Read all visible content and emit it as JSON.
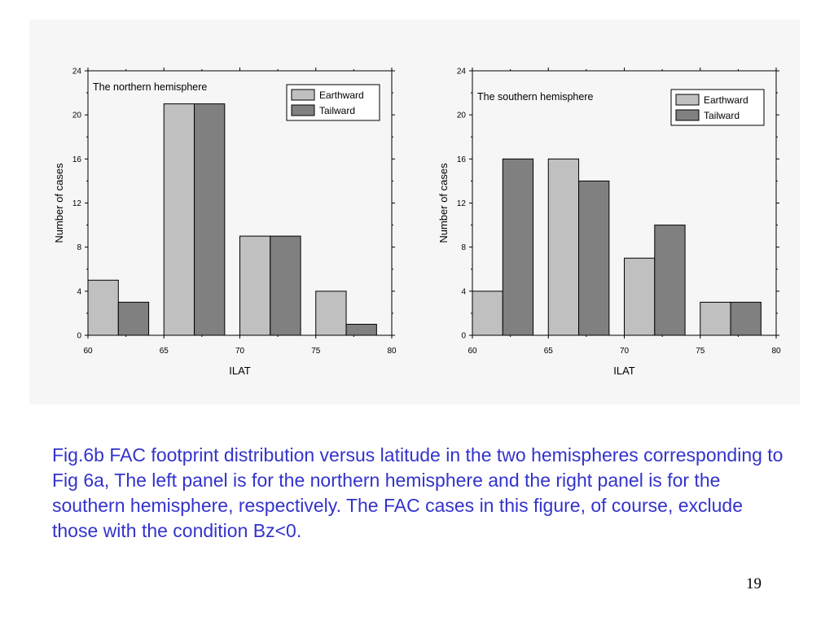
{
  "caption": "Fig.6b  FAC footprint distribution versus latitude in the two hemispheres corresponding to Fig 6a, The left panel is for the northern hemisphere and the right panel is for the southern hemisphere, respectively. The FAC cases in this figure, of course, exclude those with the condition Bz<0.",
  "page_number": "19",
  "colors": {
    "earthward": "#c0c0c0",
    "tailward": "#808080",
    "caption_text": "#3333cc"
  },
  "chart_data": [
    {
      "type": "bar",
      "title": "The northern hemisphere",
      "xlabel": "ILAT",
      "ylabel": "Number of cases",
      "xlim": [
        60,
        80
      ],
      "ylim": [
        0,
        24
      ],
      "xticks": [
        "60",
        "65",
        "70",
        "75",
        "80"
      ],
      "yticks": [
        "0",
        "4",
        "8",
        "12",
        "16",
        "20",
        "24"
      ],
      "bin_width": 2,
      "legend_position": "top-right",
      "grid": false,
      "series": [
        {
          "name": "Earthward",
          "color": "#c0c0c0",
          "x": [
            61,
            66,
            71,
            76
          ],
          "values": [
            5,
            21,
            9,
            4
          ]
        },
        {
          "name": "Tailward",
          "color": "#808080",
          "x": [
            63,
            68,
            73,
            78
          ],
          "values": [
            3,
            21,
            9,
            1
          ]
        }
      ]
    },
    {
      "type": "bar",
      "title": "The southern hemisphere",
      "xlabel": "ILAT",
      "ylabel": "Number of cases",
      "xlim": [
        60,
        80
      ],
      "ylim": [
        0,
        24
      ],
      "xticks": [
        "60",
        "65",
        "70",
        "75",
        "80"
      ],
      "yticks": [
        "0",
        "4",
        "8",
        "12",
        "16",
        "20",
        "24"
      ],
      "bin_width": 2,
      "legend_position": "top-right",
      "grid": false,
      "series": [
        {
          "name": "Earthward",
          "color": "#c0c0c0",
          "x": [
            61,
            66,
            71,
            76
          ],
          "values": [
            4,
            16,
            7,
            3
          ]
        },
        {
          "name": "Tailward",
          "color": "#808080",
          "x": [
            63,
            68,
            73,
            78
          ],
          "values": [
            16,
            14,
            10,
            3
          ]
        }
      ]
    }
  ]
}
